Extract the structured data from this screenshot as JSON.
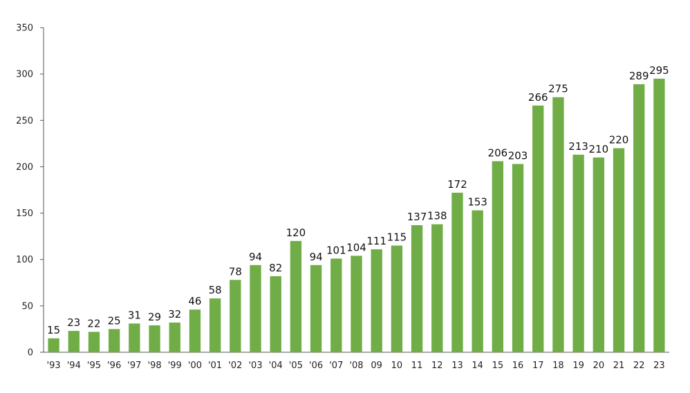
{
  "chart_data": {
    "type": "bar",
    "title": "",
    "xlabel": "",
    "ylabel": "",
    "ylim": [
      0,
      350
    ],
    "yticks": [
      0,
      50,
      100,
      150,
      200,
      250,
      300,
      350
    ],
    "grid": false,
    "legend": "none",
    "bar_color": "#70AD47",
    "categories": [
      "'93",
      "'94",
      "'95",
      "'96",
      "'97",
      "'98",
      "'99",
      "'00",
      "'01",
      "'02",
      "'03",
      "'04",
      "'05",
      "'06",
      "'07",
      "'08",
      "09",
      "10",
      "11",
      "12",
      "13",
      "14",
      "15",
      "16",
      "17",
      "18",
      "19",
      "20",
      "21",
      "22",
      "23"
    ],
    "values": [
      15,
      23,
      22,
      25,
      31,
      29,
      32,
      46,
      58,
      78,
      94,
      82,
      120,
      94,
      101,
      104,
      111,
      115,
      137,
      138,
      172,
      153,
      206,
      203,
      266,
      275,
      213,
      210,
      220,
      289,
      295
    ]
  }
}
